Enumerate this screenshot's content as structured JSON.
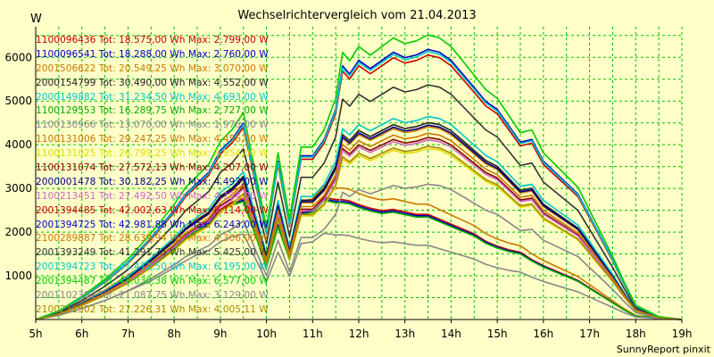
{
  "chart_data": {
    "type": "line",
    "title": "Wechselrichtervergleich vom 21.04.2013",
    "ylabel": "W",
    "xlabel": "",
    "x_ticks": [
      "5h",
      "6h",
      "7h",
      "8h",
      "9h",
      "10h",
      "11h",
      "12h",
      "13h",
      "14h",
      "15h",
      "16h",
      "17h",
      "18h",
      "19h"
    ],
    "y_ticks": [
      1000,
      2000,
      3000,
      4000,
      5000,
      6000
    ],
    "xlim": [
      5,
      19
    ],
    "ylim": [
      0,
      6700
    ],
    "grid": true,
    "legend_position": "top-left",
    "credit": "SunnyReport pinxit",
    "x_hours": [
      5.0,
      5.5,
      6.0,
      6.5,
      7.0,
      7.5,
      8.0,
      8.25,
      8.5,
      8.75,
      9.0,
      9.25,
      9.5,
      9.75,
      10.0,
      10.25,
      10.5,
      10.75,
      11.0,
      11.25,
      11.5,
      11.65,
      11.8,
      12.0,
      12.25,
      12.5,
      12.75,
      13.0,
      13.25,
      13.5,
      13.75,
      14.0,
      14.25,
      14.5,
      14.75,
      15.0,
      15.25,
      15.5,
      15.75,
      16.0,
      16.25,
      16.5,
      16.75,
      17.0,
      17.25,
      17.5,
      17.75,
      18.0,
      18.5,
      19.0
    ],
    "series": [
      {
        "name": "1100096436 Tot: 18.575,00 Wh Max: 2.799,00 W",
        "color": "#cc0000",
        "shape": "B",
        "scale": 2799
      },
      {
        "name": "1100096541 Tot: 18.288,00 Wh Max: 2.760,00 W",
        "color": "#0000cc",
        "shape": "B",
        "scale": 2760
      },
      {
        "name": "2001506622 Tot: 20.549,25 Wh Max: 3.070,00 W",
        "color": "#cc7700",
        "shape": "B",
        "scale": 3070
      },
      {
        "name": "2000154799 Tot: 30.490,00 Wh Max: 4.552,00 W",
        "color": "#222222",
        "shape": "A",
        "scale": 4552
      },
      {
        "name": "2000149882 Tot: 31.234,50 Wh Max: 4.693,00 W",
        "color": "#00c8c8",
        "shape": "A",
        "scale": 4693
      },
      {
        "name": "1100129553 Tot: 16.289,75 Wh Max: 2.727,00 W",
        "color": "#00aa00",
        "shape": "B",
        "scale": 2727
      },
      {
        "name": "1100130966 Tot: 13.070,00 Wh Max: 1.976,00 W",
        "color": "#888888",
        "shape": "B",
        "scale": 1976
      },
      {
        "name": "1100131006 Tot: 29.247,25 Wh Max: 4.456,00 W",
        "color": "#cc7700",
        "shape": "A",
        "scale": 4456
      },
      {
        "name": "1100131025 Tot: 26.799,25 Wh Max: 3.954,00 W",
        "color": "#dddd00",
        "shape": "A",
        "scale": 3954
      },
      {
        "name": "1100131074 Tot: 27.572,13 Wh Max: 4.207,00 W",
        "color": "#880000",
        "shape": "A",
        "scale": 4207
      },
      {
        "name": "2000001478 Tot: 30.182,25 Wh Max: 4.493,00 W",
        "color": "#000088",
        "shape": "A",
        "scale": 4493
      },
      {
        "name": "1100213451 Tot: 27.492,50 Wh Max: 4.154,00 W",
        "color": "#cc66cc",
        "shape": "A",
        "scale": 4154
      },
      {
        "name": "2001394485 Tot: 42.002,63 Wh Max: 6.114,00 W",
        "color": "#cc0000",
        "shape": "A",
        "scale": 6114
      },
      {
        "name": "2001394725 Tot: 42.981,88 Wh Max: 6.243,00 W",
        "color": "#0000cc",
        "shape": "A",
        "scale": 6243
      },
      {
        "name": "2100289887 Tot: 28.639,94 Wh Max: 4.306,00 W",
        "color": "#cc7700",
        "shape": "A",
        "scale": 4306
      },
      {
        "name": "2001393249 Tot: 41.291,75 Wh Max: 5.425,00 W",
        "color": "#333333",
        "shape": "A",
        "scale": 5425
      },
      {
        "name": "2001394723 Tot: 41.472,50 Wh Max: 6.195,00 W",
        "color": "#00c8c8",
        "shape": "A",
        "scale": 6195
      },
      {
        "name": "2001394487 Tot: 44.030,38 Wh Max: 6.577,00 W",
        "color": "#00cc00",
        "shape": "A",
        "scale": 6577
      },
      {
        "name": "2001102302 Tot: 21.087,75 Wh Max: 3.129,00 W",
        "color": "#888888",
        "shape": "A",
        "scale": 3129
      },
      {
        "name": "2100211502 Tot: 27.226,31 Wh Max: 4.005,11 W",
        "color": "#aa8800",
        "shape": "A",
        "scale": 4005
      }
    ],
    "profiles": {
      "A": [
        0.0,
        0.03,
        0.08,
        0.14,
        0.21,
        0.3,
        0.4,
        0.46,
        0.5,
        0.54,
        0.62,
        0.66,
        0.72,
        0.52,
        0.32,
        0.58,
        0.35,
        0.6,
        0.6,
        0.66,
        0.77,
        0.93,
        0.9,
        0.95,
        0.92,
        0.95,
        0.98,
        0.96,
        0.97,
        0.99,
        0.98,
        0.95,
        0.9,
        0.85,
        0.8,
        0.77,
        0.71,
        0.65,
        0.66,
        0.58,
        0.54,
        0.5,
        0.46,
        0.38,
        0.3,
        0.22,
        0.13,
        0.05,
        0.01,
        0.0
      ],
      "B": [
        0.0,
        0.05,
        0.13,
        0.22,
        0.33,
        0.45,
        0.6,
        0.68,
        0.75,
        0.8,
        0.9,
        0.96,
        0.99,
        0.72,
        0.44,
        0.78,
        0.5,
        0.88,
        0.9,
        1.0,
        0.98,
        0.98,
        0.97,
        0.94,
        0.91,
        0.89,
        0.9,
        0.88,
        0.86,
        0.86,
        0.82,
        0.78,
        0.74,
        0.7,
        0.64,
        0.6,
        0.57,
        0.55,
        0.49,
        0.44,
        0.4,
        0.36,
        0.32,
        0.26,
        0.2,
        0.14,
        0.08,
        0.03,
        0.01,
        0.0
      ]
    }
  }
}
